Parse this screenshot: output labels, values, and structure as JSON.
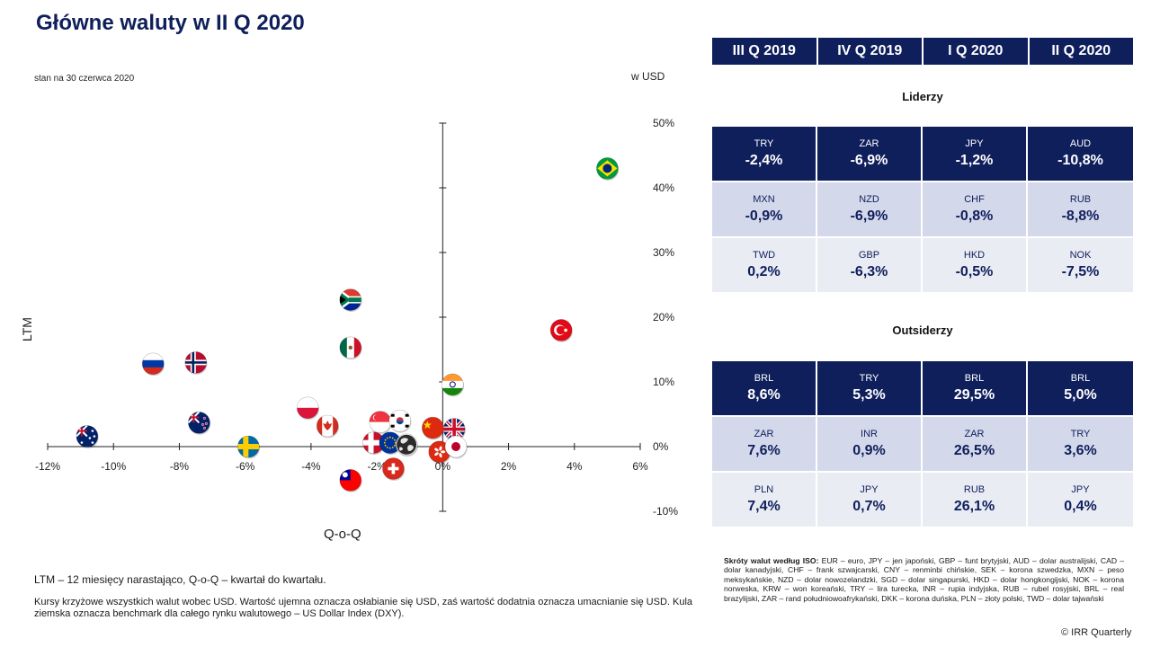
{
  "title": "Główne waluty w II Q 2020",
  "as_of": "stan na 30 czerwca 2020",
  "unit_label": "w USD",
  "notes": {
    "ltm_def": "LTM – 12 miesięcy narastająco, Q-o-Q – kwartał do kwartału.",
    "explanation": "Kursy krzyżowe wszystkich walut wobec USD. Wartość ujemna oznacza osłabianie się USD, zaś wartość dodatnia oznacza umacnianie się USD. Kula ziemska oznacza benchmark dla całego rynku walutowego – US Dollar Index (DXY)."
  },
  "iso_title": "Skróty walut według ISO:",
  "iso_text": " EUR – euro, JPY – jen japoński, GBP – funt brytyjski, AUD – dolar australijski, CAD – dolar kanadyjski, CHF – frank szwajcarski, CNY – renminbi chińskie, SEK – korona szwedzka, MXN – peso meksykańskie, NZD – dolar nowozelandzki, SGD – dolar singapurski, HKD – dolar hongkongijski, NOK – korona norweska, KRW – won koreański, TRY – lira turecka, INR – rupia indyjska, RUB – rubel rosyjski, BRL – real brazylijski, ZAR – rand południowoafrykański, DKK – korona duńska, PLN – złoty polski, TWD – dolar tajwański",
  "copyright": "© IRR Quarterly",
  "table": {
    "quarters": [
      "III Q 2019",
      "IV Q 2019",
      "I Q 2020",
      "II Q 2020"
    ],
    "leaders_title": "Liderzy",
    "leaders": [
      [
        {
          "code": "TRY",
          "val": "-2,4%"
        },
        {
          "code": "ZAR",
          "val": "-6,9%"
        },
        {
          "code": "JPY",
          "val": "-1,2%"
        },
        {
          "code": "AUD",
          "val": "-10,8%"
        }
      ],
      [
        {
          "code": "MXN",
          "val": "-0,9%"
        },
        {
          "code": "NZD",
          "val": "-6,9%"
        },
        {
          "code": "CHF",
          "val": "-0,8%"
        },
        {
          "code": "RUB",
          "val": "-8,8%"
        }
      ],
      [
        {
          "code": "TWD",
          "val": "0,2%"
        },
        {
          "code": "GBP",
          "val": "-6,3%"
        },
        {
          "code": "HKD",
          "val": "-0,5%"
        },
        {
          "code": "NOK",
          "val": "-7,5%"
        }
      ]
    ],
    "outsiders_title": "Outsiderzy",
    "outsiders": [
      [
        {
          "code": "BRL",
          "val": "8,6%"
        },
        {
          "code": "TRY",
          "val": "5,3%"
        },
        {
          "code": "BRL",
          "val": "29,5%"
        },
        {
          "code": "BRL",
          "val": "5,0%"
        }
      ],
      [
        {
          "code": "ZAR",
          "val": "7,6%"
        },
        {
          "code": "INR",
          "val": "0,9%"
        },
        {
          "code": "ZAR",
          "val": "26,5%"
        },
        {
          "code": "TRY",
          "val": "3,6%"
        }
      ],
      [
        {
          "code": "PLN",
          "val": "7,4%"
        },
        {
          "code": "JPY",
          "val": "0,7%"
        },
        {
          "code": "RUB",
          "val": "26,1%"
        },
        {
          "code": "JPY",
          "val": "0,4%"
        }
      ]
    ]
  },
  "chart_data": {
    "type": "scatter",
    "xlabel": "Q-o-Q",
    "ylabel": "LTM",
    "xlim": [
      -12,
      6
    ],
    "ylim": [
      -10,
      50
    ],
    "x_ticks": [
      "-12%",
      "-10%",
      "-8%",
      "-6%",
      "-4%",
      "-2%",
      "0%",
      "2%",
      "4%",
      "6%"
    ],
    "y_ticks": [
      "-10%",
      "0%",
      "10%",
      "20%",
      "30%",
      "40%",
      "50%"
    ],
    "points": [
      {
        "flag": "BRL",
        "x": 5.0,
        "y": 43.0
      },
      {
        "flag": "TRY",
        "x": 3.6,
        "y": 18.0
      },
      {
        "flag": "ZAR",
        "x": -2.8,
        "y": 22.7
      },
      {
        "flag": "MXN",
        "x": -2.8,
        "y": 15.3
      },
      {
        "flag": "RUB",
        "x": -8.8,
        "y": 12.8
      },
      {
        "flag": "NOK",
        "x": -7.5,
        "y": 13.0
      },
      {
        "flag": "INR",
        "x": 0.3,
        "y": 9.6
      },
      {
        "flag": "PLN",
        "x": -4.1,
        "y": 6.0
      },
      {
        "flag": "NZD",
        "x": -7.4,
        "y": 3.7
      },
      {
        "flag": "CAD",
        "x": -3.5,
        "y": 3.2
      },
      {
        "flag": "SGD",
        "x": -1.9,
        "y": 3.8
      },
      {
        "flag": "KRW",
        "x": -1.3,
        "y": 4.0
      },
      {
        "flag": "CNY",
        "x": -0.3,
        "y": 2.9
      },
      {
        "flag": "GBP",
        "x": 0.35,
        "y": 2.7
      },
      {
        "flag": "AUD",
        "x": -10.8,
        "y": 1.6
      },
      {
        "flag": "DKK",
        "x": -2.1,
        "y": 0.6
      },
      {
        "flag": "EUR",
        "x": -1.6,
        "y": 0.6
      },
      {
        "flag": "DXY",
        "x": -1.1,
        "y": 0.3
      },
      {
        "flag": "HKD",
        "x": -0.1,
        "y": -0.8
      },
      {
        "flag": "JPY",
        "x": 0.4,
        "y": 0.0
      },
      {
        "flag": "SEK",
        "x": -5.9,
        "y": 0.0
      },
      {
        "flag": "CHF",
        "x": -1.5,
        "y": -3.4
      },
      {
        "flag": "TWD",
        "x": -2.8,
        "y": -5.2
      }
    ]
  }
}
